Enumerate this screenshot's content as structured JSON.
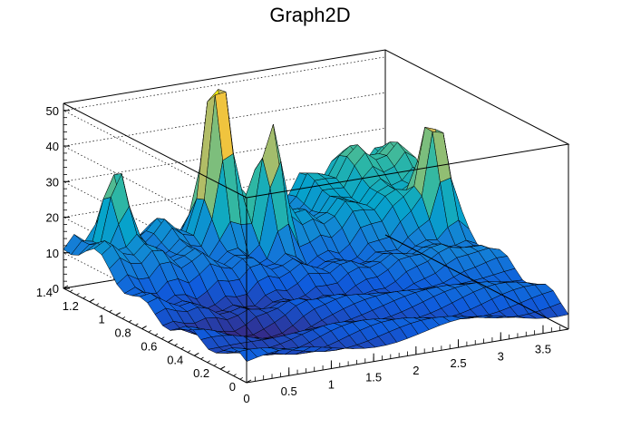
{
  "chart_data": {
    "type": "surface",
    "title": "Graph2D",
    "xlabel": "",
    "ylabel": "",
    "zlabel": "",
    "xlim": [
      0,
      3.8
    ],
    "ylim": [
      0,
      1.4
    ],
    "zlim": [
      0,
      52
    ],
    "x_ticks": [
      "0",
      "0.5",
      "1",
      "1.5",
      "2",
      "2.5",
      "3",
      "3.5"
    ],
    "y_ticks": [
      "0",
      "0.2",
      "0.4",
      "0.6",
      "0.8",
      "1",
      "1.2",
      "1.4"
    ],
    "z_ticks": [
      "0",
      "10",
      "20",
      "30",
      "40",
      "50"
    ],
    "colormap": [
      "#352a87",
      "#0f5cdd",
      "#1481d6",
      "#06a4ca",
      "#2eb7a4",
      "#87bf77",
      "#d1bb59",
      "#fec832",
      "#f9fb0e"
    ],
    "grid": true,
    "peaks": [
      {
        "x": 1.6,
        "y": 1.25,
        "z": 50
      },
      {
        "x": 2.0,
        "y": 1.1,
        "z": 30
      },
      {
        "x": 3.6,
        "y": 0.9,
        "z": 27
      },
      {
        "x": 0.45,
        "y": 1.3,
        "z": 22
      }
    ]
  }
}
